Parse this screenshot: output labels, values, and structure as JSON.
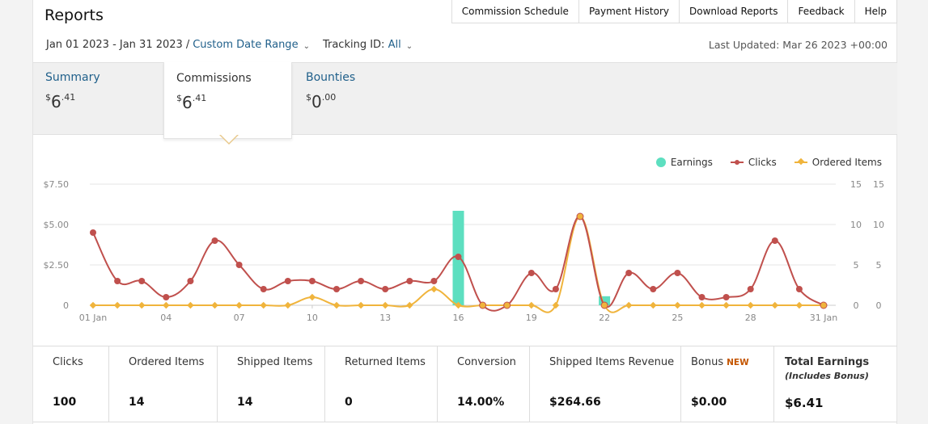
{
  "header": {
    "title": "Reports",
    "links": [
      "Commission Schedule",
      "Payment History",
      "Download Reports",
      "Feedback",
      "Help"
    ]
  },
  "filters": {
    "date_range": "Jan 01 2023 - Jan 31 2023",
    "separator": "/",
    "custom_range_label": "Custom Date Range",
    "tracking_label": "Tracking ID:",
    "tracking_value": "All",
    "last_updated": "Last Updated: Mar 26 2023 +00:00"
  },
  "tabs": [
    {
      "label": "Summary",
      "symbol": "$",
      "whole": "6",
      "cents": ".41"
    },
    {
      "label": "Commissions",
      "symbol": "$",
      "whole": "6",
      "cents": ".41"
    },
    {
      "label": "Bounties",
      "symbol": "$",
      "whole": "0",
      "cents": ".00"
    }
  ],
  "legend": {
    "earnings": "Earnings",
    "clicks": "Clicks",
    "ordered": "Ordered Items"
  },
  "colors": {
    "earnings": "#5ddfc0",
    "clicks": "#c0504d",
    "ordered": "#f0b43c",
    "link": "#1f5f8a",
    "new_badge": "#c45500"
  },
  "chart_data": {
    "type": "line",
    "x": [
      "01 Jan",
      "02",
      "03",
      "04",
      "05",
      "06",
      "07",
      "08",
      "09",
      "10",
      "11",
      "12",
      "13",
      "14",
      "15",
      "16",
      "17",
      "18",
      "19",
      "20",
      "21",
      "22",
      "23",
      "24",
      "25",
      "26",
      "27",
      "28",
      "29",
      "30",
      "31 Jan"
    ],
    "x_tick_labels": [
      "01 Jan",
      "04",
      "07",
      "10",
      "13",
      "16",
      "19",
      "22",
      "25",
      "28",
      "31 Jan"
    ],
    "series": [
      {
        "name": "Earnings",
        "kind": "bar",
        "axis": "left",
        "values": [
          0,
          0,
          0,
          0,
          0,
          0,
          0,
          0,
          0,
          0,
          0,
          0,
          0,
          0,
          0,
          5.85,
          0,
          0,
          0,
          0,
          0,
          0.56,
          0,
          0,
          0,
          0,
          0,
          0,
          0,
          0,
          0
        ]
      },
      {
        "name": "Clicks",
        "kind": "line",
        "axis": "right",
        "values": [
          9,
          3,
          3,
          1,
          3,
          8,
          5,
          2,
          3,
          3,
          2,
          3,
          2,
          3,
          3,
          6,
          0,
          0,
          4,
          2,
          11,
          0,
          4,
          2,
          4,
          1,
          1,
          2,
          8,
          2,
          0
        ]
      },
      {
        "name": "Ordered Items",
        "kind": "line",
        "axis": "right",
        "values": [
          0,
          0,
          0,
          0,
          0,
          0,
          0,
          0,
          0,
          1,
          0,
          0,
          0,
          0,
          2,
          0,
          0,
          0,
          0,
          0,
          11,
          0,
          0,
          0,
          0,
          0,
          0,
          0,
          0,
          0,
          0
        ]
      }
    ],
    "left_axis": {
      "ticks": [
        "$7.50",
        "$5.00",
        "$2.50",
        "0"
      ],
      "ylim": [
        0,
        7.5
      ]
    },
    "right_axis": {
      "ticks": [
        "15",
        "10",
        "5",
        "0"
      ],
      "ylim": [
        0,
        15
      ]
    },
    "right_axis_2": {
      "ticks": [
        "15",
        "10",
        "5",
        "0"
      ]
    },
    "grid": true,
    "legend_position": "top-right"
  },
  "stats": [
    {
      "label": "Clicks",
      "value": "100"
    },
    {
      "label": "Ordered Items",
      "value": "14"
    },
    {
      "label": "Shipped Items",
      "value": "14"
    },
    {
      "label": "Returned Items",
      "value": "0"
    },
    {
      "label": "Conversion",
      "value": "14.00%"
    },
    {
      "label": "Shipped Items Revenue",
      "value": "$264.66"
    },
    {
      "label": "Bonus",
      "badge": "NEW",
      "value": "$0.00"
    },
    {
      "label": "Total Earnings",
      "sub": "(Includes Bonus)",
      "value": "$6.41"
    }
  ]
}
